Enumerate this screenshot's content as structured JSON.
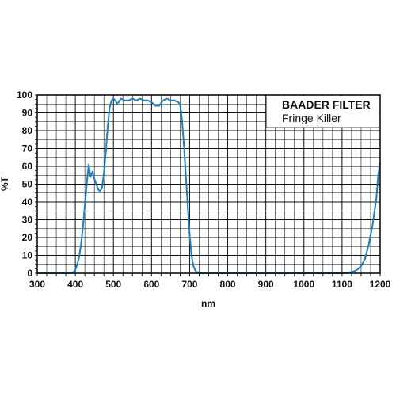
{
  "chart_data": {
    "type": "line",
    "title": "BAADER FILTER",
    "subtitle": "Fringe Killer",
    "xlabel": "nm",
    "ylabel": "%T",
    "xlim": [
      300,
      1200
    ],
    "ylim": [
      0,
      100
    ],
    "x_ticks": [
      "300",
      "400",
      "500",
      "600",
      "700",
      "800",
      "900",
      "1000",
      "1100",
      "1200"
    ],
    "y_ticks": [
      "0",
      "10",
      "20",
      "30",
      "40",
      "50",
      "60",
      "70",
      "80",
      "90",
      "100"
    ],
    "grid": true,
    "legend_position": "top-right",
    "series": [
      {
        "color": "#1e7fc4",
        "points": [
          [
            300,
            0
          ],
          [
            385,
            0
          ],
          [
            395,
            0.5
          ],
          [
            400,
            2
          ],
          [
            405,
            5
          ],
          [
            410,
            9
          ],
          [
            415,
            16
          ],
          [
            420,
            26
          ],
          [
            425,
            38
          ],
          [
            430,
            50
          ],
          [
            435,
            61
          ],
          [
            440,
            54
          ],
          [
            445,
            57
          ],
          [
            450,
            53
          ],
          [
            455,
            50
          ],
          [
            460,
            47
          ],
          [
            465,
            46
          ],
          [
            470,
            48
          ],
          [
            475,
            56
          ],
          [
            480,
            68
          ],
          [
            485,
            82
          ],
          [
            490,
            93
          ],
          [
            495,
            97
          ],
          [
            500,
            98
          ],
          [
            505,
            97
          ],
          [
            510,
            95
          ],
          [
            520,
            98
          ],
          [
            530,
            97
          ],
          [
            540,
            97
          ],
          [
            550,
            98
          ],
          [
            560,
            97
          ],
          [
            570,
            98
          ],
          [
            580,
            97
          ],
          [
            590,
            97
          ],
          [
            600,
            96
          ],
          [
            610,
            94
          ],
          [
            620,
            94
          ],
          [
            630,
            97
          ],
          [
            640,
            98
          ],
          [
            650,
            97
          ],
          [
            660,
            97
          ],
          [
            670,
            96
          ],
          [
            675,
            95
          ],
          [
            680,
            86
          ],
          [
            685,
            72
          ],
          [
            690,
            55
          ],
          [
            695,
            38
          ],
          [
            700,
            22
          ],
          [
            705,
            10
          ],
          [
            710,
            4
          ],
          [
            715,
            1.5
          ],
          [
            720,
            0.5
          ],
          [
            730,
            0
          ],
          [
            1110,
            0
          ],
          [
            1120,
            0.5
          ],
          [
            1130,
            1
          ],
          [
            1140,
            2
          ],
          [
            1150,
            4
          ],
          [
            1160,
            8
          ],
          [
            1170,
            16
          ],
          [
            1180,
            27
          ],
          [
            1190,
            42
          ],
          [
            1195,
            55
          ],
          [
            1200,
            62
          ]
        ]
      }
    ]
  }
}
